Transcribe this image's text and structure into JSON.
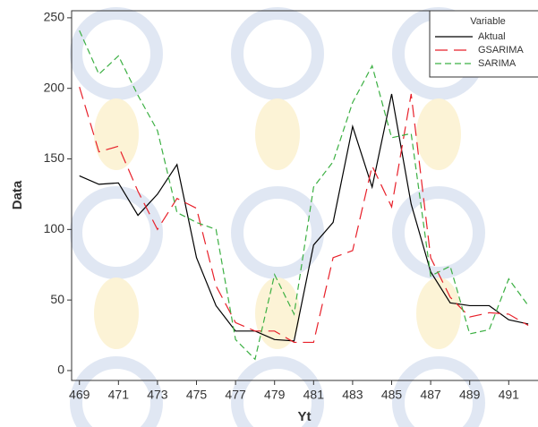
{
  "chart_data": {
    "type": "line",
    "x_label": "Yt",
    "y_label": "Data",
    "legend_title": "Variable",
    "legend": "top-right",
    "x": [
      469,
      470,
      471,
      472,
      473,
      474,
      475,
      476,
      477,
      478,
      479,
      480,
      481,
      482,
      483,
      484,
      485,
      486,
      487,
      488,
      489,
      490,
      491,
      492
    ],
    "series": [
      {
        "name": "Aktual",
        "color": "#000000",
        "values": [
          138,
          132,
          133,
          110,
          125,
          146,
          80,
          46,
          28,
          28,
          22,
          21,
          89,
          105,
          173,
          130,
          196,
          118,
          70,
          48,
          46,
          46,
          36,
          33
        ]
      },
      {
        "name": "GSARIMA",
        "color": "#e8202a",
        "values": [
          201,
          155,
          159,
          127,
          100,
          122,
          115,
          60,
          34,
          28,
          28,
          20,
          20,
          80,
          85,
          145,
          116,
          196,
          80,
          52,
          38,
          41,
          40,
          32
        ]
      },
      {
        "name": "SARIMA",
        "color": "#3cb043",
        "values": [
          241,
          210,
          223,
          195,
          170,
          112,
          105,
          100,
          22,
          8,
          68,
          40,
          130,
          148,
          190,
          216,
          165,
          168,
          67,
          74,
          26,
          29,
          65,
          46
        ]
      }
    ],
    "xlim": [
      468.6,
      492.5
    ],
    "ylim": [
      -7,
      255
    ],
    "xticks": [
      469,
      471,
      473,
      475,
      477,
      479,
      481,
      483,
      485,
      487,
      489,
      491
    ],
    "yticks": [
      0,
      50,
      100,
      150,
      200,
      250
    ]
  }
}
